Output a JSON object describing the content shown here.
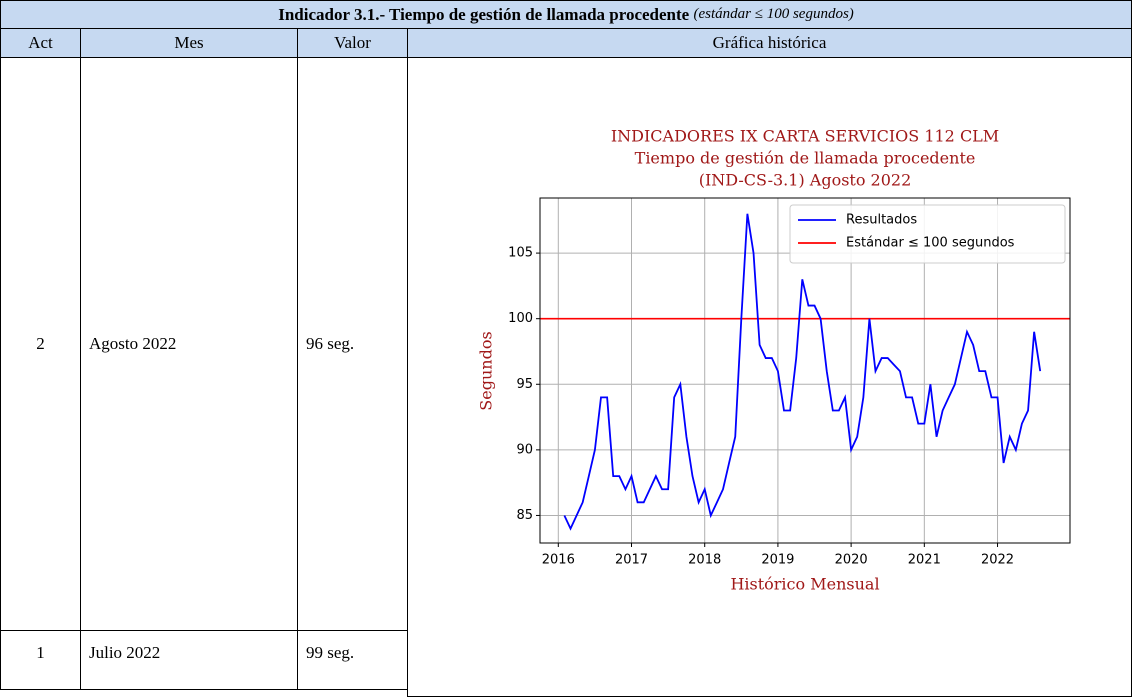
{
  "header": {
    "title": "Indicador 3.1.- Tiempo de gestión de llamada procedente",
    "subtitle": "(estándar ≤ 100 segundos)"
  },
  "table": {
    "columns": [
      "Act",
      "Mes",
      "Valor",
      "Gráfica histórica"
    ],
    "rows": [
      [
        "2",
        "Agosto 2022",
        "96 seg."
      ],
      [
        "1",
        "Julio 2022",
        "99 seg."
      ]
    ]
  },
  "chart_data": {
    "type": "line",
    "title": [
      "INDICADORES IX CARTA SERVICIOS 112 CLM",
      "Tiempo de gestión de llamada procedente",
      "(IND-CS-3.1) Agosto 2022"
    ],
    "xlabel": "Histórico Mensual",
    "ylabel": "Segundos",
    "xlim": [
      2015.75,
      2022.99
    ],
    "ylim": [
      82.9,
      109.2
    ],
    "xticks": [
      2016,
      2017,
      2018,
      2019,
      2020,
      2021,
      2022
    ],
    "yticks": [
      85,
      90,
      95,
      100,
      105
    ],
    "grid": true,
    "legend": "upper right",
    "series": [
      {
        "name": "Resultados",
        "color": "#0000ff",
        "x": [
          2016.083,
          2016.167,
          2016.25,
          2016.333,
          2016.417,
          2016.5,
          2016.583,
          2016.667,
          2016.75,
          2016.833,
          2016.917,
          2017,
          2017.083,
          2017.167,
          2017.25,
          2017.333,
          2017.417,
          2017.5,
          2017.583,
          2017.667,
          2017.75,
          2017.833,
          2017.917,
          2018,
          2018.083,
          2018.167,
          2018.25,
          2018.333,
          2018.417,
          2018.5,
          2018.583,
          2018.667,
          2018.75,
          2018.833,
          2018.917,
          2019,
          2019.083,
          2019.167,
          2019.25,
          2019.333,
          2019.417,
          2019.5,
          2019.583,
          2019.667,
          2019.75,
          2019.833,
          2019.917,
          2020,
          2020.083,
          2020.167,
          2020.25,
          2020.333,
          2020.417,
          2020.5,
          2020.583,
          2020.667,
          2020.75,
          2020.833,
          2020.917,
          2021,
          2021.083,
          2021.167,
          2021.25,
          2021.333,
          2021.417,
          2021.5,
          2021.583,
          2021.667,
          2021.75,
          2021.833,
          2021.917,
          2022,
          2022.083,
          2022.167,
          2022.25,
          2022.333,
          2022.417,
          2022.5,
          2022.583
        ],
        "values": [
          85,
          84,
          85,
          86,
          88,
          90,
          94,
          94,
          88,
          88,
          87,
          88,
          86,
          86,
          87,
          88,
          87,
          87,
          94,
          95,
          91,
          88,
          86,
          87,
          85,
          86,
          87,
          89,
          91,
          100,
          108,
          105,
          98,
          97,
          97,
          96,
          93,
          93,
          97,
          103,
          101,
          101,
          100,
          96,
          93,
          93,
          94,
          90,
          91,
          94,
          100,
          96,
          97,
          97,
          96.5,
          96,
          94,
          94,
          92,
          92,
          95,
          91,
          93,
          94,
          95,
          97,
          99,
          98,
          96,
          96,
          94,
          94,
          89,
          91,
          90,
          92,
          93,
          99,
          96
        ]
      }
    ],
    "reference_line": {
      "name": "Estándar ≤ 100 segundos",
      "value": 100,
      "color": "#ff0000"
    }
  }
}
